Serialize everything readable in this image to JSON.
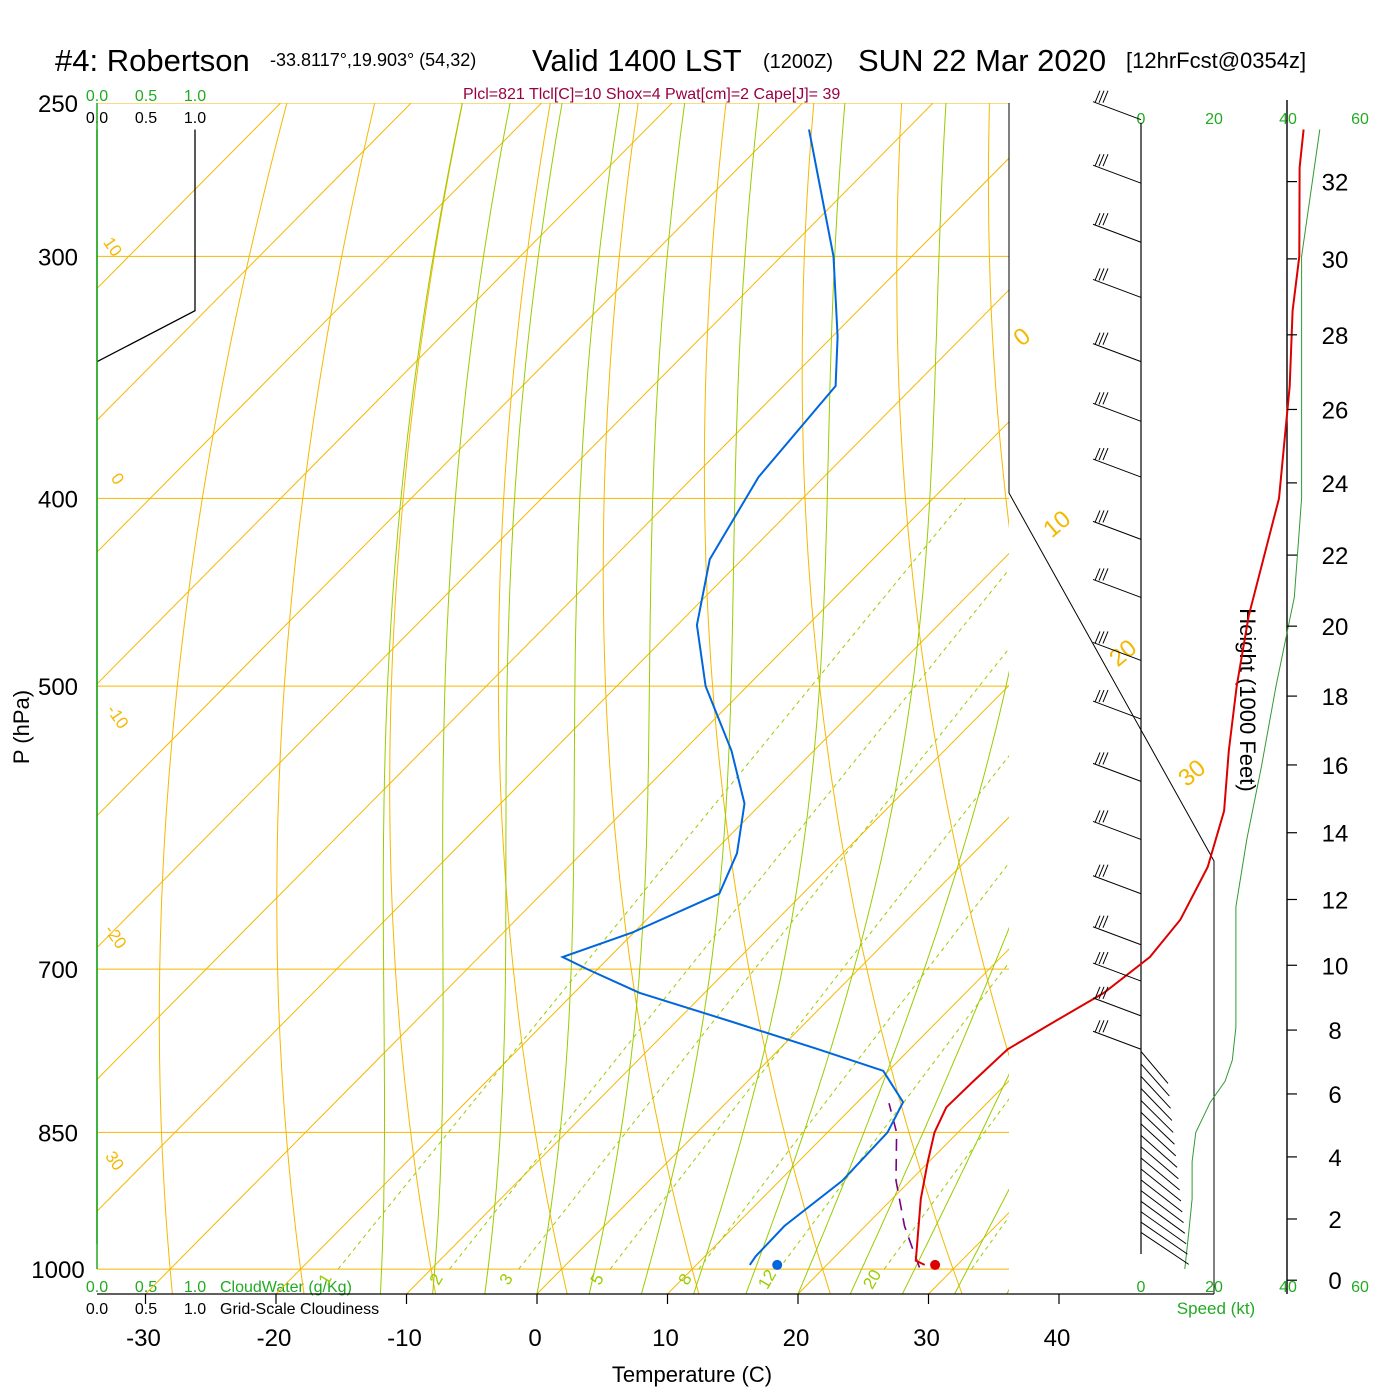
{
  "title": {
    "station": "#4: Robertson",
    "coords": "-33.8117°,19.903° (54,32)",
    "valid": "Valid 1400 LST",
    "zulu": "(1200Z)",
    "date": "SUN 22 Mar 2020",
    "forecast": "[12hrFcst@0354z]"
  },
  "indices_line": "Plcl=821 Tlcl[C]=10 Shox=4 Pwat[cm]=2 Cape[J]= 39",
  "colors": {
    "temperature": "#dd0000",
    "dewpoint": "#0066dd",
    "parcel": "#7a0080",
    "isotherm": "#f5b800",
    "dry_adiabat": "#f5b800",
    "moist_adiabat": "#99cc00",
    "mixing_ratio": "#99cc00",
    "green_text": "#22aa22",
    "indices_text": "#990044",
    "speed_curve": "#339933"
  },
  "cloud_axis": {
    "ticks": [
      "0.0",
      "0.5",
      "1.0"
    ],
    "cloudwater_label": "CloudWater (g/Kg)",
    "cloudiness_label": "Grid-Scale Cloudiness"
  },
  "speed_axis": {
    "ticks": [
      "0",
      "20",
      "40",
      "60"
    ],
    "label": "Speed (kt)"
  },
  "isotherm_labels": [
    "0",
    "10",
    "20",
    "30"
  ],
  "dry_adiabat_labels": [
    "10",
    "0",
    "-10",
    "-20",
    "30"
  ],
  "mixing_ratio_labels": [
    "1",
    "2",
    "3",
    "5",
    "8",
    "12",
    "20"
  ],
  "chart_data": {
    "type": "skew-t",
    "xlabel": "Temperature (C)",
    "ylabel": "P (hPa)",
    "y2label": "Height (1000 Feet)",
    "x_ticks": [
      -30,
      -20,
      -10,
      0,
      10,
      20,
      30,
      40
    ],
    "p_ticks": [
      250,
      300,
      400,
      500,
      700,
      850,
      1000
    ],
    "height_ticks": [
      0,
      2,
      4,
      6,
      8,
      10,
      12,
      14,
      16,
      18,
      20,
      22,
      24,
      26,
      28,
      30,
      32
    ],
    "temperature": [
      {
        "p": 995,
        "t": 27.5
      },
      {
        "p": 990,
        "t": 26.5
      },
      {
        "p": 960,
        "t": 24.7
      },
      {
        "p": 920,
        "t": 22.2
      },
      {
        "p": 880,
        "t": 19.9
      },
      {
        "p": 850,
        "t": 18.2
      },
      {
        "p": 825,
        "t": 17.2
      },
      {
        "p": 800,
        "t": 17.3
      },
      {
        "p": 770,
        "t": 17.5
      },
      {
        "p": 745,
        "t": 19.0
      },
      {
        "p": 720,
        "t": 20.6
      },
      {
        "p": 690,
        "t": 21.4
      },
      {
        "p": 660,
        "t": 20.9
      },
      {
        "p": 620,
        "t": 19.0
      },
      {
        "p": 580,
        "t": 16.0
      },
      {
        "p": 540,
        "t": 11.8
      },
      {
        "p": 500,
        "t": 7.5
      },
      {
        "p": 460,
        "t": 3.1
      },
      {
        "p": 400,
        "t": -3.5
      },
      {
        "p": 350,
        "t": -11.2
      },
      {
        "p": 320,
        "t": -16.7
      },
      {
        "p": 300,
        "t": -20.3
      },
      {
        "p": 270,
        "t": -27.0
      },
      {
        "p": 258,
        "t": -29.6
      }
    ],
    "dewpoint": [
      {
        "p": 995,
        "t": 14.1
      },
      {
        "p": 985,
        "t": 13.9
      },
      {
        "p": 950,
        "t": 13.8
      },
      {
        "p": 900,
        "t": 14.8
      },
      {
        "p": 850,
        "t": 14.6
      },
      {
        "p": 820,
        "t": 13.5
      },
      {
        "p": 790,
        "t": 9.6
      },
      {
        "p": 770,
        "t": 3.0
      },
      {
        "p": 745,
        "t": -5.8
      },
      {
        "p": 720,
        "t": -15.0
      },
      {
        "p": 700,
        "t": -20.8
      },
      {
        "p": 690,
        "t": -23.6
      },
      {
        "p": 670,
        "t": -20.1
      },
      {
        "p": 640,
        "t": -16.4
      },
      {
        "p": 610,
        "t": -18.1
      },
      {
        "p": 575,
        "t": -21.3
      },
      {
        "p": 540,
        "t": -26.3
      },
      {
        "p": 500,
        "t": -33.2
      },
      {
        "p": 465,
        "t": -38.5
      },
      {
        "p": 430,
        "t": -42.5
      },
      {
        "p": 390,
        "t": -45.0
      },
      {
        "p": 350,
        "t": -46.0
      },
      {
        "p": 330,
        "t": -49.6
      },
      {
        "p": 300,
        "t": -56.0
      },
      {
        "p": 258,
        "t": -67.5
      }
    ],
    "parcel": [
      {
        "p": 998,
        "t": 27.3
      },
      {
        "p": 980,
        "t": 25.7
      },
      {
        "p": 950,
        "t": 23.0
      },
      {
        "p": 900,
        "t": 18.9
      },
      {
        "p": 850,
        "t": 15.3
      },
      {
        "p": 821,
        "t": 12.5
      }
    ],
    "surface_markers": {
      "temperature": 28.3,
      "dewpoint": 16.2,
      "p": 995
    },
    "cloudiness": [
      {
        "p": 258,
        "v": 1.0
      },
      {
        "p": 320,
        "v": 1.0
      },
      {
        "p": 340,
        "v": 0.0
      }
    ],
    "cloudwater": [
      {
        "p": 258,
        "v": 0.0
      },
      {
        "p": 1000,
        "v": 0.0
      }
    ],
    "wind_speed_kt": [
      {
        "p": 1000,
        "s": 12
      },
      {
        "p": 960,
        "s": 13
      },
      {
        "p": 920,
        "s": 14
      },
      {
        "p": 880,
        "s": 14
      },
      {
        "p": 850,
        "s": 15
      },
      {
        "p": 820,
        "s": 19
      },
      {
        "p": 800,
        "s": 23
      },
      {
        "p": 780,
        "s": 25
      },
      {
        "p": 750,
        "s": 26
      },
      {
        "p": 700,
        "s": 26
      },
      {
        "p": 650,
        "s": 26
      },
      {
        "p": 600,
        "s": 29
      },
      {
        "p": 550,
        "s": 33
      },
      {
        "p": 500,
        "s": 37
      },
      {
        "p": 450,
        "s": 42
      },
      {
        "p": 400,
        "s": 44
      },
      {
        "p": 300,
        "s": 44
      },
      {
        "p": 258,
        "s": 49
      }
    ],
    "hodo_outline": [
      {
        "p": 400,
        "v": 36
      },
      {
        "p": 700,
        "v": 46
      },
      {
        "p": 760,
        "v": 46
      },
      {
        "p": 850,
        "v": 46
      },
      {
        "p": 1000,
        "v": 46
      }
    ]
  }
}
